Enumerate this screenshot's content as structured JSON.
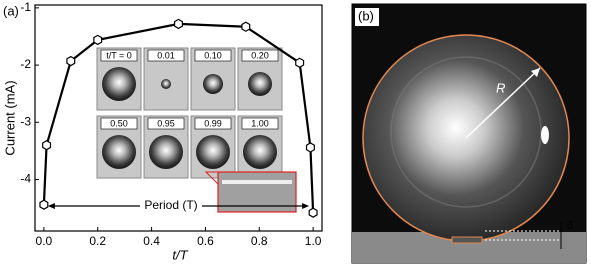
{
  "chart_data": {
    "type": "line",
    "x": [
      0,
      0.01,
      0.1,
      0.2,
      0.5,
      0.75,
      0.95,
      0.99,
      1.0
    ],
    "series": [
      {
        "color": "#000000",
        "values": [
          -4.44,
          -3.4,
          -1.93,
          -1.56,
          -1.28,
          -1.33,
          -1.96,
          -3.44,
          -4.58
        ]
      }
    ],
    "xlim": [
      -0.033,
      1.033
    ],
    "ylim": [
      -4.9,
      -0.95
    ],
    "xticks": [
      {
        "value": 0,
        "label": "0.0"
      },
      {
        "value": 0.2,
        "label": "0.2"
      },
      {
        "value": 0.4,
        "label": "0.4"
      },
      {
        "value": 0.6,
        "label": "0.6"
      },
      {
        "value": 0.8,
        "label": "0.8"
      },
      {
        "value": 1.0,
        "label": "1.0"
      }
    ],
    "yticks": [
      -1,
      -2,
      -3,
      -4
    ],
    "xlabel": "t/T",
    "ylabel": "Current (mA)",
    "period_label": "Period (T)",
    "inset_labels": [
      "t/T = 0",
      "0.01",
      "0.10",
      "0.20",
      "0.50",
      "0.95",
      "0.99",
      "1.00"
    ],
    "panel_labels": [
      "(a)",
      "(b)"
    ],
    "image_labels": [
      "R",
      "δ"
    ]
  }
}
